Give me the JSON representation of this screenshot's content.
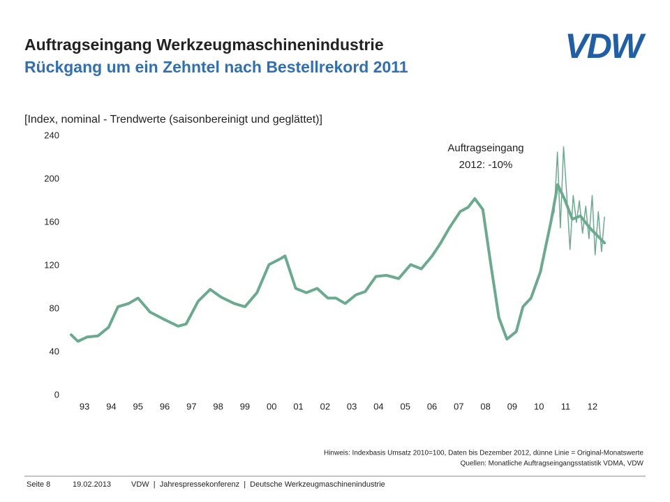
{
  "header": {
    "title": "Auftragseingang Werkzeugmaschinenindustrie",
    "subtitle": "Rückgang um ein Zehntel nach Bestellrekord 2011",
    "logo": "VDW"
  },
  "chart_data": {
    "type": "line",
    "axis_label": "[Index, nominal - Trendwerte (saisonbereinigt und geglättet)]",
    "annotation": [
      "Auftragseingang",
      "2012: -10%"
    ],
    "xlim": [
      1993,
      2013
    ],
    "xticks": [
      {
        "value": 1993.5,
        "label": "93"
      },
      {
        "value": 1994.5,
        "label": "94"
      },
      {
        "value": 1995.5,
        "label": "95"
      },
      {
        "value": 1996.5,
        "label": "96"
      },
      {
        "value": 1997.5,
        "label": "97"
      },
      {
        "value": 1998.5,
        "label": "98"
      },
      {
        "value": 1999.5,
        "label": "99"
      },
      {
        "value": 2000.5,
        "label": "00"
      },
      {
        "value": 2001.5,
        "label": "01"
      },
      {
        "value": 2002.5,
        "label": "02"
      },
      {
        "value": 2003.5,
        "label": "03"
      },
      {
        "value": 2004.5,
        "label": "04"
      },
      {
        "value": 2005.5,
        "label": "05"
      },
      {
        "value": 2006.5,
        "label": "06"
      },
      {
        "value": 2007.5,
        "label": "07"
      },
      {
        "value": 2008.5,
        "label": "08"
      },
      {
        "value": 2009.5,
        "label": "09"
      },
      {
        "value": 2010.5,
        "label": "10"
      },
      {
        "value": 2011.5,
        "label": "11"
      },
      {
        "value": 2012.5,
        "label": "12"
      }
    ],
    "ylim": [
      0,
      240
    ],
    "yticks": [
      0,
      40,
      80,
      120,
      160,
      200,
      240
    ],
    "series": [
      {
        "color": "#6aaa8f",
        "width": 4,
        "x": [
          1993.0,
          1993.25,
          1993.6,
          1994.0,
          1994.4,
          1994.75,
          1995.15,
          1995.5,
          1995.95,
          1996.5,
          1997.0,
          1997.3,
          1997.75,
          1998.2,
          1998.6,
          1999.1,
          1999.5,
          1999.95,
          2000.4,
          2000.8,
          2001.0,
          2001.4,
          2001.8,
          2002.2,
          2002.6,
          2002.9,
          2003.25,
          2003.65,
          2004.0,
          2004.4,
          2004.8,
          2005.25,
          2005.7,
          2006.1,
          2006.5,
          2006.8,
          2007.15,
          2007.55,
          2007.85,
          2008.1,
          2008.4,
          2008.7,
          2009.0,
          2009.3,
          2009.65,
          2009.9,
          2010.2,
          2010.55,
          2010.95,
          2011.2,
          2011.45,
          2011.75,
          2012.05,
          2012.4,
          2012.95
        ],
        "values": [
          56,
          50,
          54,
          55,
          63,
          82,
          85,
          90,
          77,
          70,
          64,
          66,
          87,
          98,
          91,
          85,
          82,
          95,
          121,
          126,
          129,
          99,
          95,
          99,
          90,
          90,
          85,
          93,
          96,
          110,
          111,
          108,
          121,
          117,
          129,
          140,
          155,
          170,
          174,
          182,
          172,
          121,
          72,
          52,
          59,
          82,
          90,
          114,
          161,
          195,
          182,
          163,
          166,
          155,
          141
        ]
      },
      {
        "color": "#6aaa8f",
        "width": 1.5,
        "x": [
          2010.95,
          2011.07,
          2011.19,
          2011.3,
          2011.42,
          2011.54,
          2011.66,
          2011.78,
          2011.9,
          2012.01,
          2012.13,
          2012.25,
          2012.37,
          2012.49,
          2012.6,
          2012.72,
          2012.84,
          2012.95
        ],
        "values": [
          161,
          170,
          225,
          155,
          230,
          185,
          135,
          185,
          160,
          180,
          150,
          175,
          145,
          185,
          130,
          170,
          133,
          165
        ]
      }
    ]
  },
  "notes": [
    "Hinweis: Indexbasis Umsatz 2010=100, Daten bis Dezember 2012, dünne Linie = Original-Monatswerte",
    "Quellen: Monatliche Auftragseingangsstatistik VDMA, VDW"
  ],
  "footer": [
    "Seite 8",
    "19.02.2013",
    "VDW  |  Jahrespressekonferenz  |  Deutsche Werkzeugmaschinenindustrie"
  ]
}
